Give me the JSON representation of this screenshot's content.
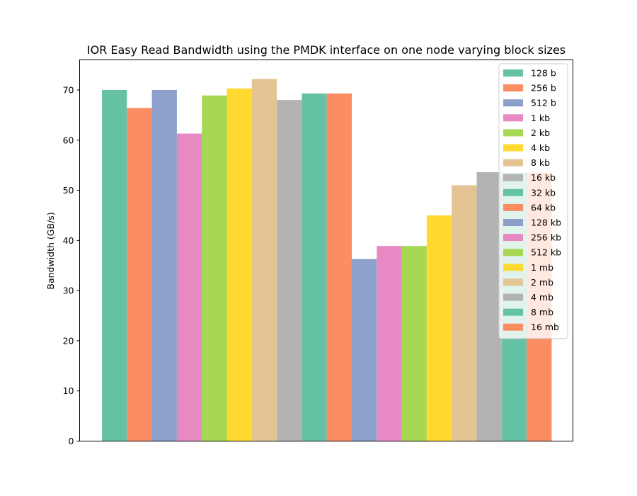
{
  "chart_data": {
    "type": "bar",
    "title": "IOR Easy Read Bandwidth using the PMDK interface on one node varying block sizes",
    "xlabel": "",
    "ylabel": "Bandwidth (GB/s)",
    "ylim": [
      0,
      76
    ],
    "yticks": [
      0,
      10,
      20,
      30,
      40,
      50,
      60,
      70
    ],
    "grid": false,
    "legend_position": "top-right",
    "series": [
      {
        "name": "128 b",
        "value": 70.0,
        "color": "#66c2a5"
      },
      {
        "name": "256 b",
        "value": 66.4,
        "color": "#fc8d62"
      },
      {
        "name": "512 b",
        "value": 70.0,
        "color": "#8da0cb"
      },
      {
        "name": "1 kb",
        "value": 61.3,
        "color": "#e78ac3"
      },
      {
        "name": "2 kb",
        "value": 68.9,
        "color": "#a6d854"
      },
      {
        "name": "4 kb",
        "value": 70.3,
        "color": "#ffd92f"
      },
      {
        "name": "8 kb",
        "value": 72.2,
        "color": "#e5c494"
      },
      {
        "name": "16 kb",
        "value": 68.0,
        "color": "#b3b3b3"
      },
      {
        "name": "32 kb",
        "value": 69.3,
        "color": "#66c2a5"
      },
      {
        "name": "64 kb",
        "value": 69.3,
        "color": "#fc8d62"
      },
      {
        "name": "128 kb",
        "value": 36.3,
        "color": "#8da0cb"
      },
      {
        "name": "256 kb",
        "value": 38.9,
        "color": "#e78ac3"
      },
      {
        "name": "512 kb",
        "value": 38.9,
        "color": "#a6d854"
      },
      {
        "name": "1 mb",
        "value": 45.0,
        "color": "#ffd92f"
      },
      {
        "name": "2 mb",
        "value": 51.0,
        "color": "#e5c494"
      },
      {
        "name": "4 mb",
        "value": 53.6,
        "color": "#b3b3b3"
      },
      {
        "name": "8 mb",
        "value": 53.5,
        "color": "#66c2a5"
      },
      {
        "name": "16 mb",
        "value": 53.5,
        "color": "#fc8d62"
      }
    ]
  }
}
